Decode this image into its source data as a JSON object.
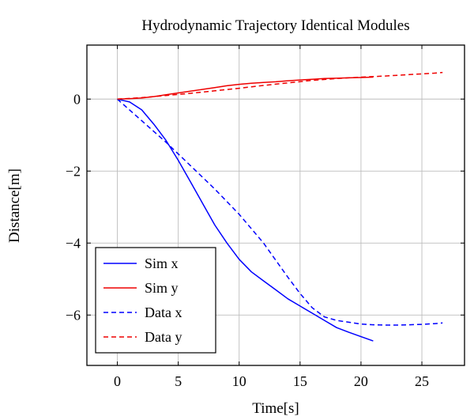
{
  "chart_data": {
    "type": "line",
    "title": "Hydrodynamic Trajectory Identical Modules",
    "xlabel": "Time[s]",
    "ylabel": "Distance[m]",
    "xlim": [
      -2.5,
      28.5
    ],
    "ylim": [
      -7.4,
      1.5
    ],
    "xticks": [
      0,
      5,
      10,
      15,
      20,
      25
    ],
    "yticks": [
      0,
      -2,
      -4,
      -6
    ],
    "ytick_labels": [
      "0",
      "−2",
      "−4",
      "−6"
    ],
    "grid": true,
    "legend_position": "bottom-left",
    "series": [
      {
        "name": "Sim x",
        "color": "#0000ff",
        "dash": "solid",
        "x": [
          0,
          1,
          2,
          3,
          4,
          5,
          6,
          7,
          8,
          9,
          10,
          11,
          12,
          13,
          14,
          15,
          16,
          17,
          18,
          19,
          20,
          21
        ],
        "y": [
          0,
          -0.08,
          -0.3,
          -0.7,
          -1.15,
          -1.7,
          -2.3,
          -2.9,
          -3.5,
          -4.0,
          -4.45,
          -4.8,
          -5.05,
          -5.3,
          -5.55,
          -5.75,
          -5.95,
          -6.15,
          -6.35,
          -6.48,
          -6.6,
          -6.72
        ]
      },
      {
        "name": "Sim y",
        "color": "#ee0000",
        "dash": "solid",
        "x": [
          0,
          1,
          2,
          3,
          4,
          5,
          6,
          7,
          8,
          9,
          10,
          11,
          12,
          13,
          14,
          15,
          16,
          17,
          18,
          19,
          20,
          21
        ],
        "y": [
          0,
          0.01,
          0.03,
          0.07,
          0.12,
          0.17,
          0.22,
          0.27,
          0.32,
          0.37,
          0.41,
          0.44,
          0.46,
          0.48,
          0.51,
          0.53,
          0.55,
          0.57,
          0.58,
          0.59,
          0.6,
          0.61
        ]
      },
      {
        "name": "Data x",
        "color": "#0000ff",
        "dash": "dashed",
        "x": [
          0,
          2,
          4,
          6,
          8,
          10,
          12,
          14,
          15,
          16,
          17,
          18,
          19,
          20,
          21,
          22,
          23,
          24,
          25,
          26,
          26.7
        ],
        "y": [
          0,
          -0.6,
          -1.2,
          -1.85,
          -2.5,
          -3.2,
          -4.0,
          -4.95,
          -5.4,
          -5.8,
          -6.05,
          -6.15,
          -6.2,
          -6.25,
          -6.27,
          -6.28,
          -6.28,
          -6.27,
          -6.26,
          -6.24,
          -6.22
        ]
      },
      {
        "name": "Data y",
        "color": "#ee0000",
        "dash": "dashed",
        "x": [
          0,
          2,
          4,
          6,
          8,
          10,
          12,
          14,
          16,
          18,
          20,
          22,
          24,
          26,
          26.7
        ],
        "y": [
          0,
          0.04,
          0.1,
          0.16,
          0.23,
          0.3,
          0.38,
          0.45,
          0.52,
          0.57,
          0.61,
          0.64,
          0.68,
          0.72,
          0.74
        ]
      }
    ]
  }
}
